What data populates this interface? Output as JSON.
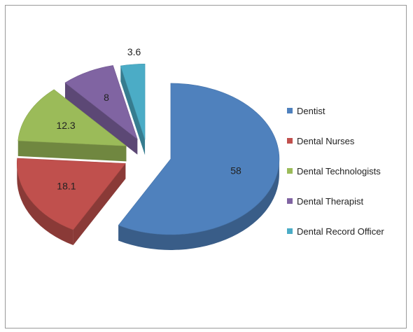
{
  "chart_data": {
    "type": "pie",
    "title": "",
    "categories": [
      "Dentist",
      "Dental Nurses",
      "Dental Technologists",
      "Dental Therapist",
      "Dental Record Officer"
    ],
    "values": [
      58,
      18.1,
      12.3,
      8,
      3.6
    ],
    "data_labels": [
      "58",
      "18.1",
      "12.3",
      "8",
      "3.6"
    ],
    "colors": [
      "#4f81bd",
      "#c0504d",
      "#9bbb59",
      "#8064a2",
      "#4bacc6"
    ],
    "exploded": true,
    "three_d": true,
    "legend_position": "right"
  }
}
